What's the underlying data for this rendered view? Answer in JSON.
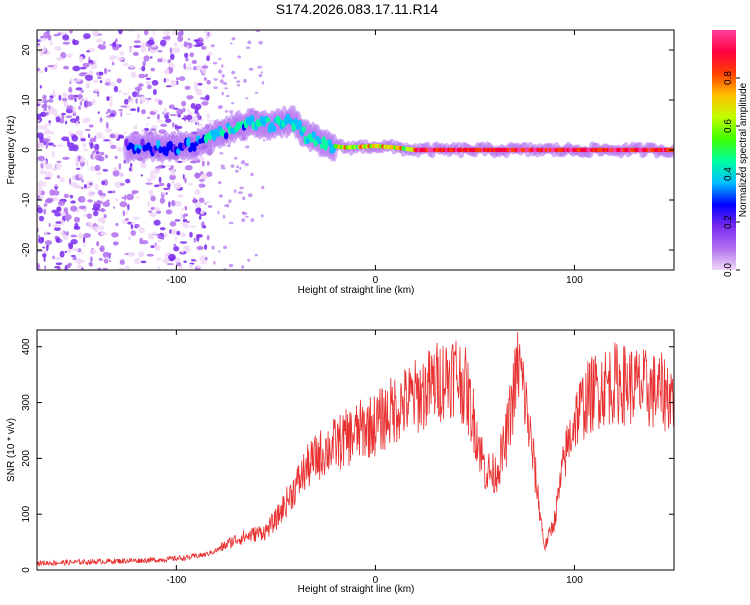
{
  "title": "S174.2026.083.17.11.R14",
  "chart_data": [
    {
      "type": "heatmap",
      "title": "S174.2026.083.17.11.R14",
      "xlabel": "Height of straight line (km)",
      "ylabel": "Frequency (Hz)",
      "xlim": [
        -170,
        150
      ],
      "ylim": [
        -24,
        24
      ],
      "xticks": [
        -100,
        0,
        100
      ],
      "xtick_labels": [
        "-100",
        "0",
        "100"
      ],
      "yticks": [
        -20,
        -10,
        0,
        10,
        20
      ],
      "ytick_labels": [
        "-20",
        "-10",
        "0",
        "10",
        "20"
      ],
      "grid": false,
      "ridge_points": [
        {
          "x": -110,
          "y": 0.5
        },
        {
          "x": -100,
          "y": 0.5
        },
        {
          "x": -90,
          "y": 1.0
        },
        {
          "x": -80,
          "y": 3.0
        },
        {
          "x": -70,
          "y": 4.5
        },
        {
          "x": -60,
          "y": 5.5
        },
        {
          "x": -50,
          "y": 5.0
        },
        {
          "x": -42,
          "y": 6.0
        },
        {
          "x": -35,
          "y": 3.0
        },
        {
          "x": -25,
          "y": 1.0
        },
        {
          "x": -15,
          "y": 0.5
        },
        {
          "x": 0,
          "y": 0.8
        },
        {
          "x": 10,
          "y": 0.5
        },
        {
          "x": 20,
          "y": 0.0
        },
        {
          "x": 150,
          "y": 0.0
        }
      ],
      "colorbar": {
        "label": "Normalized spectral amplitude",
        "range": [
          0,
          1
        ],
        "ticks": [
          0.0,
          0.2,
          0.4,
          0.6,
          0.8
        ],
        "tick_labels": [
          "0.0",
          "0.2",
          "0.4",
          "0.6",
          "0.8"
        ],
        "colors": [
          "#f0d8f8",
          "#b070f0",
          "#7a2af0",
          "#0000ff",
          "#00c0ff",
          "#00ffa0",
          "#40ff00",
          "#c0ff00",
          "#ffc000",
          "#ff4000",
          "#ff0040",
          "#ff40a0"
        ]
      }
    },
    {
      "type": "line",
      "xlabel": "Height of straight line (km)",
      "ylabel": "SNR (10 * v/v)",
      "xlim": [
        -170,
        150
      ],
      "ylim": [
        0,
        430
      ],
      "xticks": [
        -100,
        0,
        100
      ],
      "xtick_labels": [
        "-100",
        "0",
        "100"
      ],
      "yticks": [
        0,
        100,
        200,
        300,
        400
      ],
      "ytick_labels": [
        "0",
        "100",
        "200",
        "300",
        "400"
      ],
      "grid": false,
      "series": [
        {
          "name": "SNR",
          "color": "#e83030",
          "x": [
            -170,
            -150,
            -130,
            -110,
            -95,
            -90,
            -85,
            -80,
            -75,
            -70,
            -65,
            -60,
            -55,
            -50,
            -45,
            -40,
            -35,
            -30,
            -25,
            -20,
            -15,
            -10,
            -5,
            0,
            5,
            10,
            15,
            20,
            25,
            30,
            35,
            40,
            45,
            50,
            55,
            60,
            65,
            70,
            72,
            75,
            80,
            85,
            90,
            95,
            100,
            105,
            110,
            115,
            120,
            130,
            140,
            150
          ],
          "y": [
            12,
            14,
            16,
            18,
            22,
            25,
            28,
            35,
            45,
            55,
            60,
            65,
            70,
            90,
            120,
            150,
            180,
            200,
            215,
            225,
            235,
            245,
            255,
            260,
            275,
            290,
            300,
            310,
            320,
            335,
            345,
            355,
            330,
            260,
            180,
            170,
            220,
            330,
            370,
            310,
            180,
            40,
            90,
            200,
            270,
            300,
            320,
            330,
            335,
            330,
            320,
            315
          ]
        }
      ]
    }
  ]
}
